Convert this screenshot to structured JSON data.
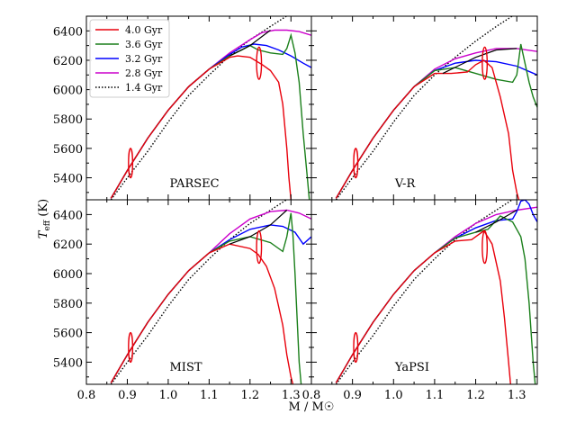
{
  "chart_data": {
    "type": "line",
    "xlabel": "M / M☉",
    "ylabel": "T_eff (K)",
    "ylabel_main": "T",
    "ylabel_sub": "eff",
    "ylabel_unit": " (K)",
    "xlim": [
      0.8,
      1.35
    ],
    "ylim": [
      5250,
      6500
    ],
    "x_ticks": [
      0.8,
      0.9,
      1.0,
      1.1,
      1.2,
      1.3
    ],
    "x_tick_labels": [
      "0.8",
      "0.9",
      "1.0",
      "1.1",
      "1.2",
      "1.3"
    ],
    "y_ticks": [
      5400,
      5600,
      5800,
      6000,
      6200,
      6400
    ],
    "y_tick_labels": [
      "5400",
      "5600",
      "5800",
      "6000",
      "6200",
      "6400"
    ],
    "legend": [
      {
        "name": "4.0 Gyr",
        "color": "#e8000b",
        "dash": "solid"
      },
      {
        "name": "3.6 Gyr",
        "color": "#1a7f1a",
        "dash": "solid"
      },
      {
        "name": "3.2 Gyr",
        "color": "#0000ff",
        "dash": "solid"
      },
      {
        "name": "2.8 Gyr",
        "color": "#cc00cc",
        "dash": "solid"
      },
      {
        "name": "1.4 Gyr",
        "color": "#000000",
        "dash": "dotted"
      }
    ],
    "panels": [
      {
        "label": "PARSEC",
        "series": [
          {
            "name": "1.4 Gyr",
            "x": [
              0.86,
              0.9,
              0.95,
              1.0,
              1.05,
              1.1,
              1.15,
              1.2,
              1.25,
              1.3,
              1.35
            ],
            "y": [
              5250,
              5400,
              5580,
              5780,
              5960,
              6100,
              6230,
              6340,
              6430,
              6520,
              6600
            ]
          },
          {
            "name": "2.8 Gyr",
            "x": [
              0.86,
              0.9,
              0.95,
              1.0,
              1.05,
              1.1,
              1.15,
              1.2,
              1.23,
              1.26,
              1.29,
              1.32,
              1.35
            ],
            "y": [
              5260,
              5450,
              5670,
              5860,
              6020,
              6140,
              6250,
              6340,
              6390,
              6405,
              6405,
              6395,
              6370
            ]
          },
          {
            "name": "3.2 Gyr",
            "x": [
              0.86,
              0.9,
              0.95,
              1.0,
              1.05,
              1.1,
              1.15,
              1.18,
              1.21,
              1.24,
              1.27,
              1.3,
              1.33,
              1.35
            ],
            "y": [
              5260,
              5450,
              5670,
              5860,
              6020,
              6140,
              6240,
              6290,
              6310,
              6300,
              6270,
              6230,
              6180,
              6150
            ]
          },
          {
            "name": "3.6 Gyr",
            "x": [
              0.86,
              0.9,
              0.95,
              1.0,
              1.05,
              1.1,
              1.15,
              1.18,
              1.2,
              1.22,
              1.25,
              1.28,
              1.29,
              1.3,
              1.31,
              1.32,
              1.33,
              1.34,
              1.345
            ],
            "y": [
              5260,
              5450,
              5670,
              5860,
              6020,
              6140,
              6230,
              6270,
              6300,
              6270,
              6250,
              6240,
              6280,
              6370,
              6250,
              6050,
              5700,
              5400,
              5250
            ]
          },
          {
            "name": "4.0 Gyr",
            "x": [
              0.86,
              0.9,
              0.95,
              1.0,
              1.05,
              1.1,
              1.15,
              1.17,
              1.2,
              1.23,
              1.25,
              1.27,
              1.28,
              1.29,
              1.295,
              1.3
            ],
            "y": [
              5260,
              5450,
              5670,
              5860,
              6020,
              6140,
              6220,
              6230,
              6220,
              6170,
              6130,
              6050,
              5900,
              5600,
              5400,
              5250
            ]
          },
          {
            "name": "tip-connector",
            "x": [
              1.15,
              1.2,
              1.25
            ],
            "y": [
              6230,
              6300,
              6405
            ]
          }
        ]
      },
      {
        "label": "V-R",
        "series": [
          {
            "name": "1.4 Gyr",
            "x": [
              0.86,
              0.9,
              0.95,
              1.0,
              1.05,
              1.1,
              1.15,
              1.2,
              1.25,
              1.3,
              1.35
            ],
            "y": [
              5250,
              5400,
              5580,
              5780,
              5960,
              6100,
              6220,
              6330,
              6430,
              6520,
              6600
            ]
          },
          {
            "name": "2.8 Gyr",
            "x": [
              0.86,
              0.9,
              0.95,
              1.0,
              1.05,
              1.1,
              1.15,
              1.2,
              1.25,
              1.3,
              1.35
            ],
            "y": [
              5260,
              5450,
              5670,
              5860,
              6020,
              6140,
              6210,
              6250,
              6280,
              6280,
              6260
            ]
          },
          {
            "name": "3.2 Gyr",
            "x": [
              0.86,
              0.9,
              0.95,
              1.0,
              1.05,
              1.1,
              1.15,
              1.2,
              1.25,
              1.3,
              1.35
            ],
            "y": [
              5260,
              5450,
              5670,
              5860,
              6020,
              6130,
              6180,
              6200,
              6190,
              6160,
              6100
            ]
          },
          {
            "name": "3.6 Gyr",
            "x": [
              0.86,
              0.9,
              0.95,
              1.0,
              1.05,
              1.1,
              1.15,
              1.2,
              1.25,
              1.29,
              1.3,
              1.31,
              1.32,
              1.33,
              1.34,
              1.35
            ],
            "y": [
              5260,
              5450,
              5670,
              5860,
              6020,
              6130,
              6150,
              6110,
              6070,
              6050,
              6100,
              6310,
              6180,
              6050,
              5950,
              5880
            ]
          },
          {
            "name": "4.0 Gyr",
            "x": [
              0.86,
              0.9,
              0.95,
              1.0,
              1.05,
              1.1,
              1.14,
              1.18,
              1.2,
              1.22,
              1.24,
              1.26,
              1.28,
              1.29,
              1.3,
              1.305
            ],
            "y": [
              5260,
              5450,
              5670,
              5860,
              6020,
              6110,
              6110,
              6120,
              6170,
              6200,
              6150,
              5950,
              5700,
              5450,
              5300,
              5250
            ]
          },
          {
            "name": "tip-connector",
            "x": [
              1.12,
              1.2,
              1.25,
              1.3
            ],
            "y": [
              6110,
              6220,
              6270,
              6280
            ]
          }
        ]
      },
      {
        "label": "MIST",
        "series": [
          {
            "name": "1.4 Gyr",
            "x": [
              0.86,
              0.9,
              0.95,
              1.0,
              1.05,
              1.1,
              1.15,
              1.2,
              1.25,
              1.3,
              1.35
            ],
            "y": [
              5250,
              5400,
              5580,
              5780,
              5960,
              6100,
              6230,
              6340,
              6430,
              6520,
              6600
            ]
          },
          {
            "name": "2.8 Gyr",
            "x": [
              0.86,
              0.9,
              0.95,
              1.0,
              1.05,
              1.1,
              1.15,
              1.2,
              1.25,
              1.29,
              1.32,
              1.35
            ],
            "y": [
              5260,
              5450,
              5670,
              5860,
              6020,
              6140,
              6270,
              6370,
              6420,
              6430,
              6410,
              6370
            ]
          },
          {
            "name": "3.2 Gyr",
            "x": [
              0.86,
              0.9,
              0.95,
              1.0,
              1.05,
              1.1,
              1.15,
              1.2,
              1.25,
              1.28,
              1.31,
              1.33,
              1.35
            ],
            "y": [
              5260,
              5450,
              5670,
              5860,
              6020,
              6140,
              6230,
              6300,
              6330,
              6320,
              6280,
              6200,
              6250
            ]
          },
          {
            "name": "3.6 Gyr",
            "x": [
              0.86,
              0.9,
              0.95,
              1.0,
              1.05,
              1.1,
              1.15,
              1.2,
              1.25,
              1.28,
              1.29,
              1.3,
              1.305,
              1.31,
              1.315,
              1.32,
              1.325
            ],
            "y": [
              5260,
              5450,
              5670,
              5860,
              6020,
              6140,
              6220,
              6250,
              6210,
              6150,
              6250,
              6410,
              6260,
              6000,
              5700,
              5400,
              5250
            ]
          },
          {
            "name": "4.0 Gyr",
            "x": [
              0.86,
              0.9,
              0.95,
              1.0,
              1.05,
              1.1,
              1.15,
              1.2,
              1.22,
              1.24,
              1.26,
              1.28,
              1.29,
              1.3,
              1.305
            ],
            "y": [
              5260,
              5450,
              5670,
              5860,
              6020,
              6140,
              6200,
              6170,
              6130,
              6050,
              5900,
              5650,
              5450,
              5300,
              5250
            ]
          },
          {
            "name": "tip-connector",
            "x": [
              1.15,
              1.2,
              1.25,
              1.29
            ],
            "y": [
              6200,
              6250,
              6330,
              6430
            ]
          }
        ]
      },
      {
        "label": "YaPSI",
        "series": [
          {
            "name": "1.4 Gyr",
            "x": [
              0.86,
              0.9,
              0.95,
              1.0,
              1.05,
              1.1,
              1.15,
              1.2,
              1.25,
              1.3,
              1.35
            ],
            "y": [
              5250,
              5400,
              5580,
              5780,
              5960,
              6100,
              6230,
              6340,
              6430,
              6520,
              6600
            ]
          },
          {
            "name": "2.8 Gyr",
            "x": [
              0.86,
              0.9,
              0.95,
              1.0,
              1.05,
              1.1,
              1.15,
              1.2,
              1.25,
              1.3,
              1.35
            ],
            "y": [
              5260,
              5450,
              5670,
              5860,
              6020,
              6140,
              6250,
              6340,
              6400,
              6430,
              6450
            ]
          },
          {
            "name": "3.2 Gyr",
            "x": [
              0.86,
              0.9,
              0.95,
              1.0,
              1.05,
              1.1,
              1.15,
              1.2,
              1.25,
              1.29,
              1.3,
              1.31,
              1.32,
              1.33,
              1.34,
              1.35
            ],
            "y": [
              5260,
              5450,
              5670,
              5860,
              6020,
              6140,
              6240,
              6310,
              6360,
              6370,
              6420,
              6490,
              6500,
              6470,
              6400,
              6350
            ]
          },
          {
            "name": "3.6 Gyr",
            "x": [
              0.86,
              0.9,
              0.95,
              1.0,
              1.05,
              1.1,
              1.15,
              1.2,
              1.23,
              1.26,
              1.29,
              1.31,
              1.32,
              1.33,
              1.34,
              1.345
            ],
            "y": [
              5260,
              5450,
              5670,
              5860,
              6020,
              6140,
              6240,
              6280,
              6300,
              6390,
              6350,
              6250,
              6100,
              5800,
              5400,
              5250
            ]
          },
          {
            "name": "4.0 Gyr",
            "x": [
              0.86,
              0.9,
              0.95,
              1.0,
              1.05,
              1.1,
              1.15,
              1.19,
              1.22,
              1.24,
              1.26,
              1.27,
              1.28,
              1.285
            ],
            "y": [
              5260,
              5450,
              5670,
              5860,
              6020,
              6140,
              6220,
              6230,
              6290,
              6200,
              5950,
              5700,
              5400,
              5250
            ]
          },
          {
            "name": "tip-connector",
            "x": [
              1.2,
              1.25,
              1.3
            ],
            "y": [
              6280,
              6350,
              6430
            ]
          }
        ]
      }
    ],
    "blue_loops": [
      {
        "x": 0.908,
        "y": 5500,
        "rx": 0.005,
        "ry": 100
      },
      {
        "x": 1.222,
        "y": 6180,
        "rx": 0.006,
        "ry": 110
      }
    ]
  }
}
